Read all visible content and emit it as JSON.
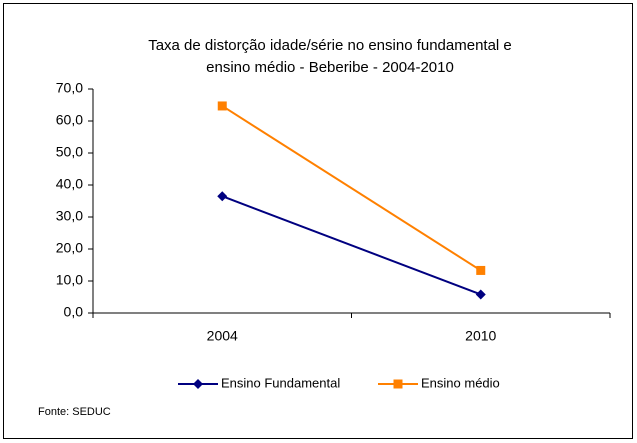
{
  "chart_data": {
    "type": "line",
    "title": [
      "Taxa de distorção idade/série no ensino fundamental e",
      "ensino médio - Beberibe - 2004-2010"
    ],
    "categories": [
      "2004",
      "2010"
    ],
    "series": [
      {
        "name": "Ensino Fundamental",
        "color": "#000080",
        "marker": "diamond",
        "values": [
          36.5,
          5.8
        ]
      },
      {
        "name": "Ensino médio",
        "color": "#ff8000",
        "marker": "square",
        "values": [
          64.7,
          13.3
        ]
      }
    ],
    "ylim": [
      0,
      70
    ],
    "yticks": [
      {
        "value": 0,
        "label": "0,0"
      },
      {
        "value": 10,
        "label": "10,0"
      },
      {
        "value": 20,
        "label": "20,0"
      },
      {
        "value": 30,
        "label": "30,0"
      },
      {
        "value": 40,
        "label": "40,0"
      },
      {
        "value": 50,
        "label": "50,0"
      },
      {
        "value": 60,
        "label": "60,0"
      },
      {
        "value": 70,
        "label": "70,0"
      }
    ],
    "grid": false,
    "legend": "bottom",
    "source": "Fonte: SEDUC"
  }
}
